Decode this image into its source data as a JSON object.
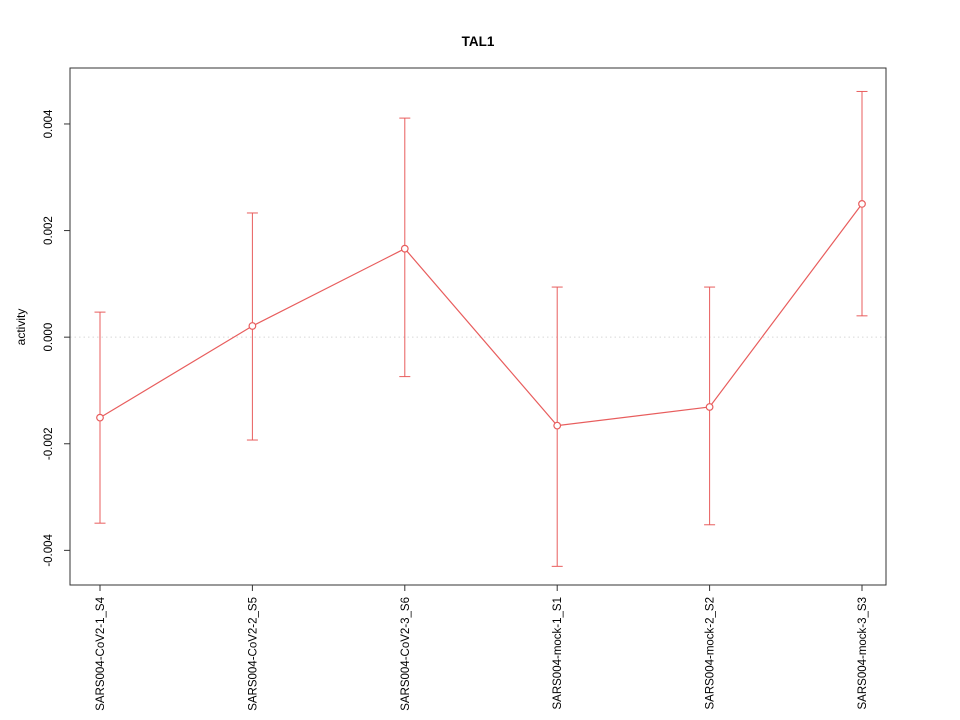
{
  "chart_data": {
    "type": "line",
    "title": "TAL1",
    "ylabel": "activity",
    "xlabel": "",
    "categories": [
      "SARS004-CoV2-1_S4",
      "SARS004-CoV2-2_S5",
      "SARS004-CoV2-3_S6",
      "SARS004-mock-1_S1",
      "SARS004-mock-2_S2",
      "SARS004-mock-3_S3"
    ],
    "series": [
      {
        "name": "TAL1 activity",
        "values": [
          -0.00151,
          0.00021,
          0.00166,
          -0.00166,
          -0.00131,
          0.0025
        ],
        "error_low": [
          -0.00349,
          -0.00193,
          -0.00074,
          -0.0043,
          -0.00352,
          0.0004
        ],
        "error_high": [
          0.00047,
          0.00233,
          0.00411,
          0.00094,
          0.00094,
          0.00461
        ]
      }
    ],
    "yticks": [
      -0.004,
      -0.002,
      0,
      0.002,
      0.004
    ],
    "ytick_labels": [
      "-0.004",
      "-0.002",
      "0.000",
      "0.002",
      "0.004"
    ],
    "ylim": [
      -0.00465,
      0.00505
    ],
    "zero_reference_line": true,
    "grid": "zero-line-only",
    "legend_position": "none",
    "marker": "open-circle",
    "line_color": "#e85d5d",
    "grid_color": "#d8d8d8",
    "axis_color": "#333333"
  }
}
